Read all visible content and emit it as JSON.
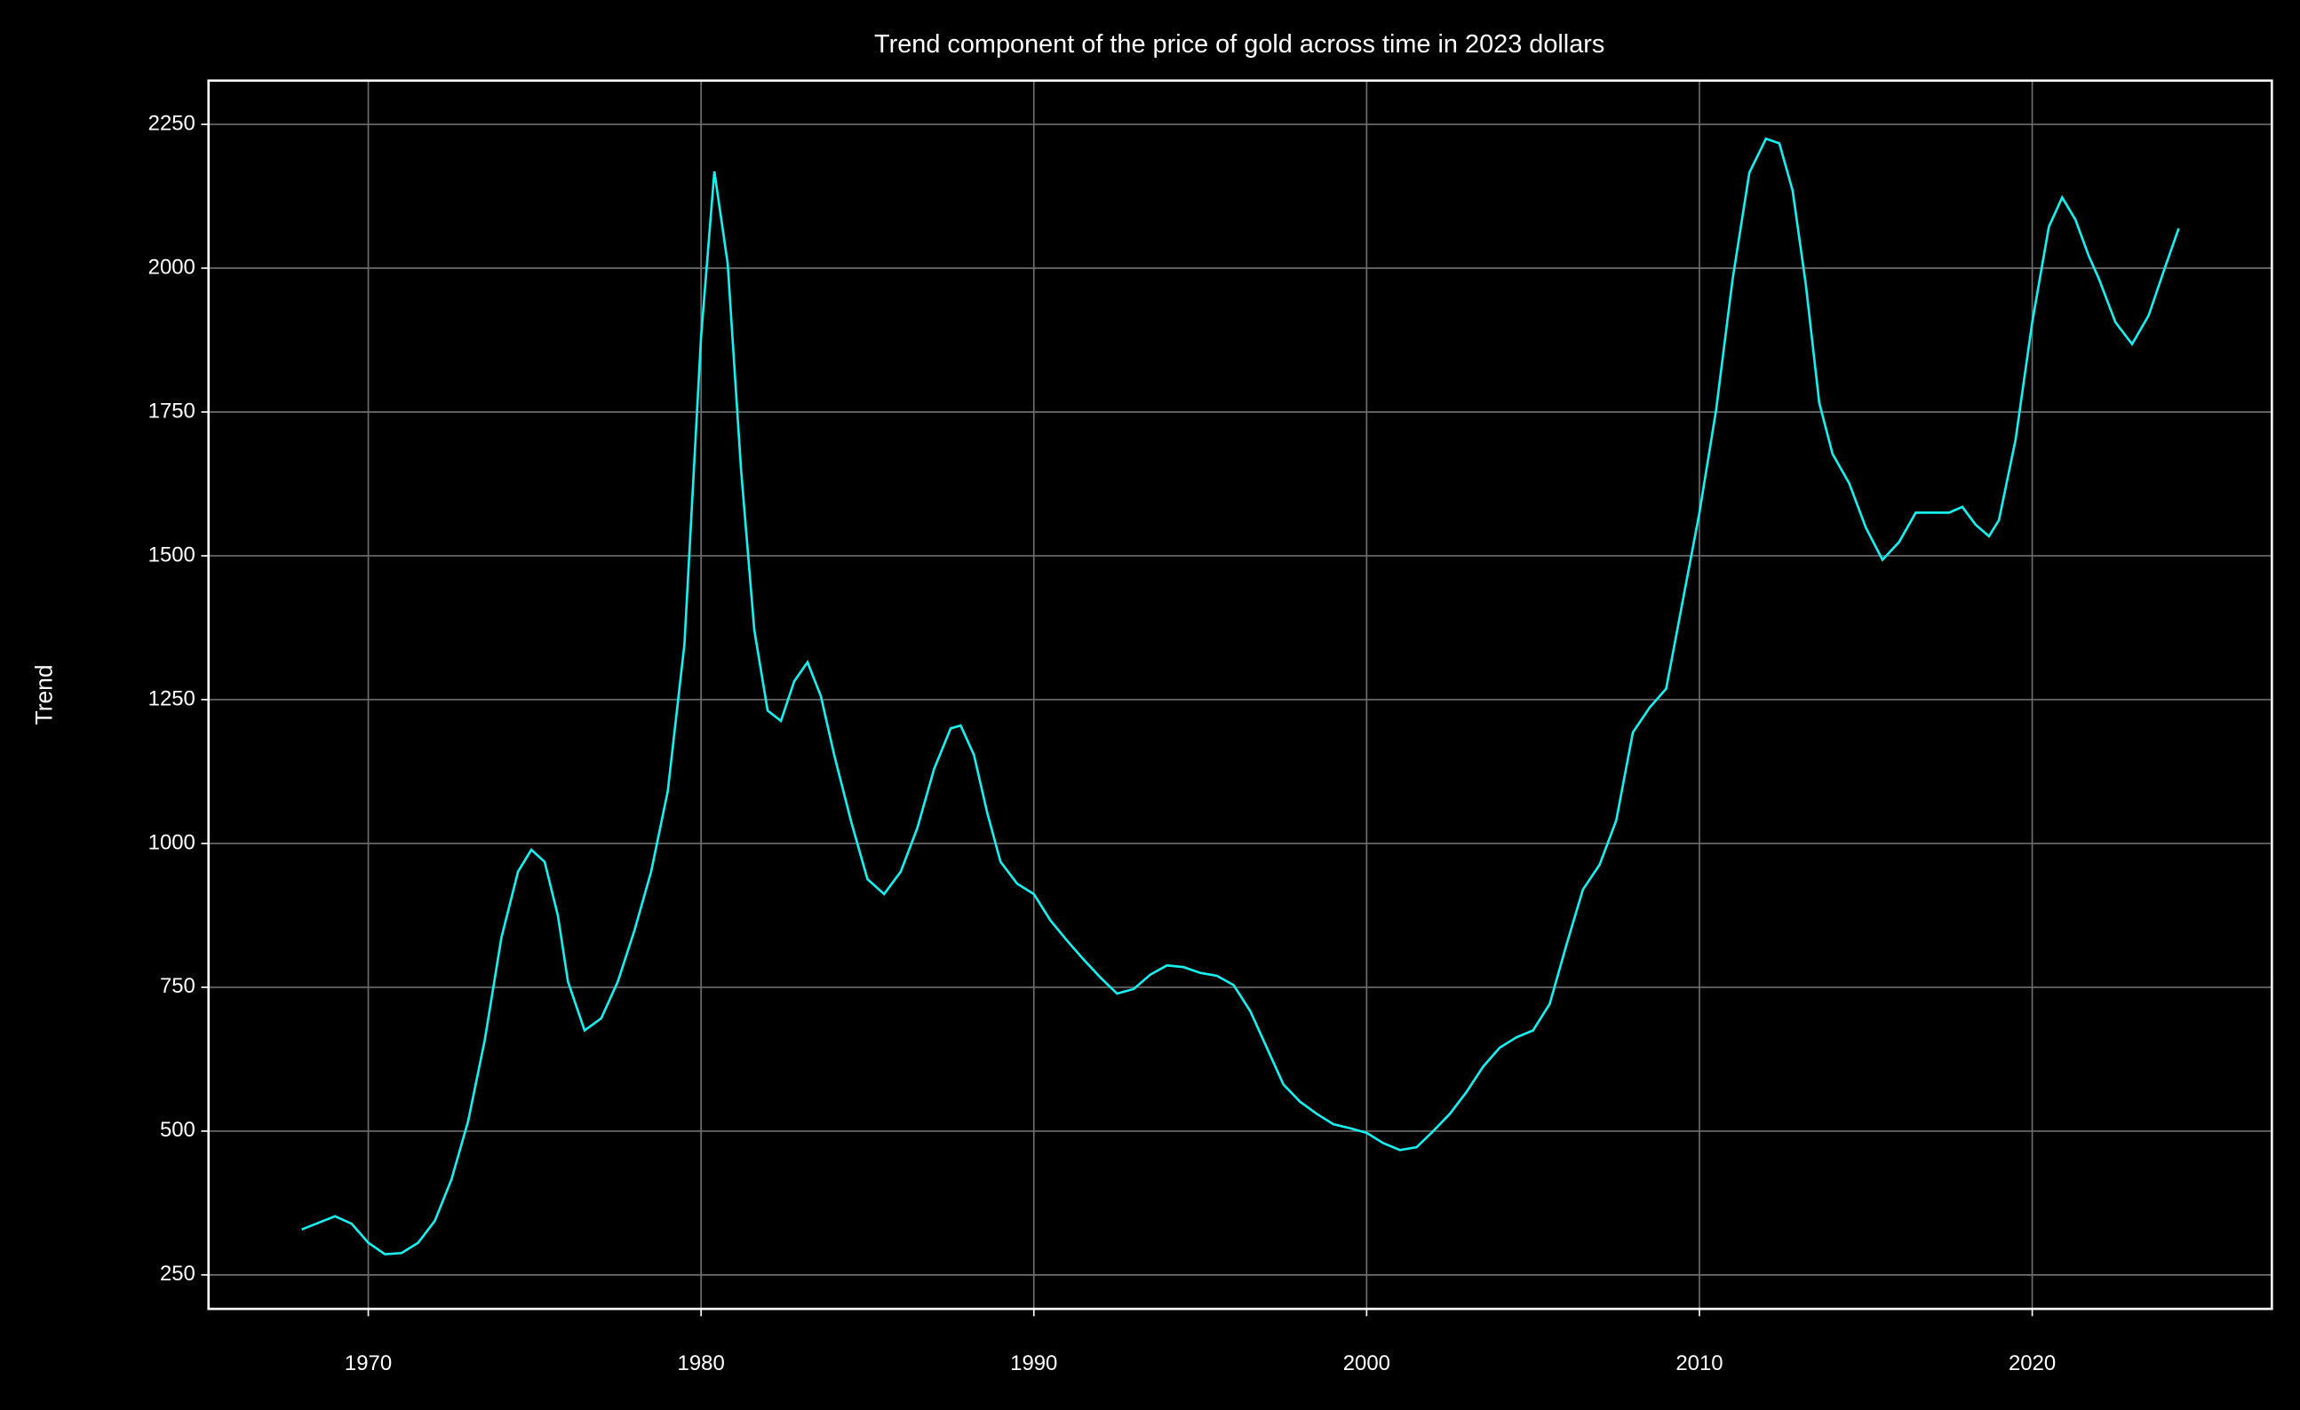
{
  "chart_data": {
    "type": "line",
    "title": "Trend component of the price of gold across time in 2023 dollars",
    "ylabel": "Trend",
    "color": "#17f0f0",
    "grid": true,
    "xlim": [
      1965.2,
      2027.2
    ],
    "ylim": [
      191,
      2326
    ],
    "xticks": [
      1970,
      1980,
      1990,
      2000,
      2010,
      2020
    ],
    "yticks": [
      250,
      500,
      750,
      1000,
      1250,
      1500,
      1750,
      2000,
      2250
    ],
    "x": [
      1968.0,
      1969.0,
      1969.5,
      1970.0,
      1970.5,
      1971.0,
      1971.5,
      1972.0,
      1972.5,
      1973.0,
      1973.5,
      1974.0,
      1974.5,
      1974.9,
      1975.3,
      1975.7,
      1976.0,
      1976.5,
      1977.0,
      1977.5,
      1978.0,
      1978.5,
      1979.0,
      1979.5,
      1980.0,
      1980.4,
      1980.8,
      1981.2,
      1981.6,
      1982.0,
      1982.4,
      1982.8,
      1983.2,
      1983.6,
      1984.0,
      1984.5,
      1985.0,
      1985.5,
      1986.0,
      1986.5,
      1987.0,
      1987.5,
      1987.8,
      1988.2,
      1988.6,
      1989.0,
      1989.5,
      1990.0,
      1990.5,
      1991.0,
      1991.5,
      1992.0,
      1992.5,
      1993.0,
      1993.5,
      1994.0,
      1994.5,
      1995.0,
      1995.5,
      1996.0,
      1996.5,
      1997.0,
      1997.5,
      1998.0,
      1998.5,
      1999.0,
      1999.5,
      2000.0,
      2000.5,
      2001.0,
      2001.5,
      2002.0,
      2002.5,
      2003.0,
      2003.5,
      2004.0,
      2004.5,
      2005.0,
      2005.5,
      2006.0,
      2006.5,
      2007.0,
      2007.5,
      2008.0,
      2008.5,
      2009.0,
      2009.5,
      2010.0,
      2010.5,
      2011.0,
      2011.5,
      2012.0,
      2012.4,
      2012.8,
      2013.2,
      2013.6,
      2014.0,
      2014.5,
      2015.0,
      2015.5,
      2016.0,
      2016.5,
      2017.0,
      2017.5,
      2017.9,
      2018.3,
      2018.7,
      2019.0,
      2019.5,
      2020.0,
      2020.5,
      2020.9,
      2021.3,
      2021.7,
      2022.0,
      2022.5,
      2023.0,
      2023.5,
      2024.0,
      2024.4
    ],
    "values": [
      329,
      352,
      339,
      306,
      286,
      288,
      306,
      344,
      416,
      517,
      658,
      836,
      951,
      989,
      968,
      874,
      760,
      675,
      696,
      760,
      849,
      951,
      1091,
      1346,
      1880,
      2168,
      2008,
      1651,
      1371,
      1231,
      1213,
      1282,
      1315,
      1256,
      1154,
      1040,
      938,
      912,
      951,
      1027,
      1129,
      1200,
      1205,
      1154,
      1053,
      968,
      930,
      912,
      866,
      831,
      798,
      767,
      739,
      747,
      772,
      788,
      785,
      775,
      770,
      754,
      709,
      645,
      581,
      551,
      530,
      512,
      505,
      497,
      479,
      467,
      472,
      500,
      530,
      568,
      612,
      645,
      663,
      675,
      721,
      823,
      920,
      963,
      1040,
      1193,
      1236,
      1269,
      1422,
      1575,
      1753,
      1982,
      2166,
      2225,
      2217,
      2135,
      1970,
      1766,
      1677,
      1626,
      1549,
      1493,
      1524,
      1575,
      1575,
      1575,
      1585,
      1554,
      1534,
      1562,
      1702,
      1906,
      2072,
      2123,
      2084,
      2021,
      1982,
      1906,
      1868,
      1918,
      2003,
      2069
    ]
  }
}
